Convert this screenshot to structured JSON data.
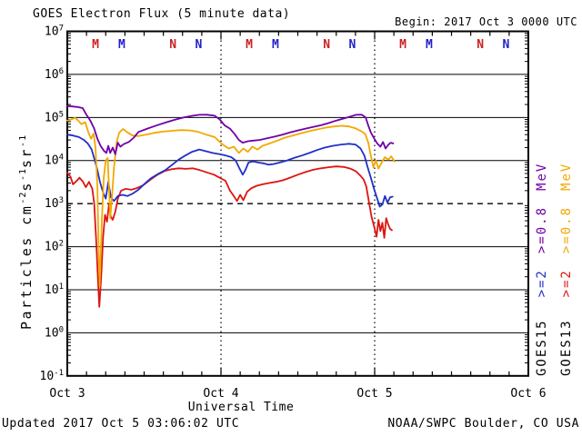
{
  "header": {
    "title": "GOES Electron Flux (5 minute data)",
    "begin": "Begin: 2017 Oct 3 0000 UTC"
  },
  "footer": {
    "updated": "Updated 2017 Oct  5 03:06:02 UTC",
    "credit": "NOAA/SWPC Boulder, CO USA"
  },
  "colors": {
    "goes15_gt08": "#7000a8",
    "goes15_gt2": "#2030c8",
    "goes13_gt08": "#f2a800",
    "goes13_gt2": "#dd1510",
    "marker_red": "#cc2020",
    "marker_blue": "#2020cc",
    "frame": "#000000",
    "background": "#ffffff"
  },
  "axes": {
    "x_label": "Universal Time",
    "x_day_labels": [
      "Oct 3",
      "Oct 4",
      "Oct 5",
      "Oct 6"
    ],
    "y_base": "10",
    "y_tick_exponents": [
      7,
      6,
      5,
      4,
      3,
      2,
      1,
      0,
      -1
    ],
    "y_label_parts": [
      {
        "text": "Particles cm"
      },
      {
        "text": "-2",
        "sup": true
      },
      {
        "text": "s"
      },
      {
        "text": "-1",
        "sup": true
      },
      {
        "text": "sr"
      },
      {
        "text": "-1",
        "sup": true
      }
    ]
  },
  "legend": {
    "col1": {
      "satellite": "GOES15",
      "e2": ">=2",
      "e08": ">=0.8",
      "mev": "MeV",
      "sat_color": "#000000",
      "e2_color": "#2030c8",
      "e08_color": "#7000a8"
    },
    "col2": {
      "satellite": "GOES13",
      "e2": ">=2",
      "e08": ">=0.8",
      "mev": "MeV",
      "sat_color": "#000000",
      "e2_color": "#dd1510",
      "e08_color": "#f2a800"
    }
  },
  "markers": [
    {
      "label": "M",
      "hour": 4.4,
      "color": "#cc2020"
    },
    {
      "label": "M",
      "hour": 8.5,
      "color": "#2020cc"
    },
    {
      "label": "N",
      "hour": 16.5,
      "color": "#cc2020"
    },
    {
      "label": "N",
      "hour": 20.5,
      "color": "#2020cc"
    },
    {
      "label": "M",
      "hour": 28.4,
      "color": "#cc2020"
    },
    {
      "label": "M",
      "hour": 32.5,
      "color": "#2020cc"
    },
    {
      "label": "N",
      "hour": 40.5,
      "color": "#cc2020"
    },
    {
      "label": "N",
      "hour": 44.5,
      "color": "#2020cc"
    },
    {
      "label": "M",
      "hour": 52.4,
      "color": "#cc2020"
    },
    {
      "label": "M",
      "hour": 56.5,
      "color": "#2020cc"
    },
    {
      "label": "N",
      "hour": 64.5,
      "color": "#cc2020"
    },
    {
      "label": "N",
      "hour": 68.5,
      "color": "#2020cc"
    }
  ],
  "chart_data": {
    "type": "line",
    "title": "GOES Electron Flux (5 minute data)",
    "xlabel": "Universal Time",
    "ylabel": "Particles cm-2 s-1 sr-1",
    "x_unit": "hours since 2017 Oct 3 0000 UTC",
    "x_range_hours": [
      0,
      72
    ],
    "y_range": [
      0.1,
      10000000
    ],
    "y_scale": "log",
    "grid": "solid horizontal line each decade, dashed threshold at 1e3, dotted vertical day boundaries",
    "threshold_line_value": 1000,
    "day_gridlines_hours": [
      24,
      48
    ],
    "series": [
      {
        "name": "GOES13 >=2 MeV",
        "color": "#dd1510",
        "points": [
          [
            0,
            5200
          ],
          [
            0.5,
            4200
          ],
          [
            0.9,
            2800
          ],
          [
            1.4,
            3300
          ],
          [
            1.9,
            4000
          ],
          [
            2.4,
            3300
          ],
          [
            2.9,
            2400
          ],
          [
            3.4,
            3200
          ],
          [
            3.9,
            2200
          ],
          [
            4.2,
            1000
          ],
          [
            4.5,
            150
          ],
          [
            4.8,
            16
          ],
          [
            5.0,
            4
          ],
          [
            5.3,
            20
          ],
          [
            5.6,
            170
          ],
          [
            5.9,
            550
          ],
          [
            6.2,
            380
          ],
          [
            6.5,
            950
          ],
          [
            6.8,
            500
          ],
          [
            7.1,
            420
          ],
          [
            7.5,
            650
          ],
          [
            7.9,
            1300
          ],
          [
            8.4,
            2000
          ],
          [
            9.1,
            2200
          ],
          [
            10,
            2100
          ],
          [
            10.9,
            2300
          ],
          [
            11.9,
            2700
          ],
          [
            13,
            3600
          ],
          [
            14.1,
            4700
          ],
          [
            15.2,
            5700
          ],
          [
            16.3,
            6300
          ],
          [
            17.4,
            6600
          ],
          [
            18.5,
            6400
          ],
          [
            19.6,
            6600
          ],
          [
            20.7,
            6000
          ],
          [
            21.8,
            5300
          ],
          [
            22.9,
            4700
          ],
          [
            23.9,
            3900
          ],
          [
            24.7,
            3400
          ],
          [
            25.4,
            2000
          ],
          [
            26,
            1500
          ],
          [
            26.5,
            1150
          ],
          [
            27,
            1600
          ],
          [
            27.5,
            1200
          ],
          [
            28.1,
            1900
          ],
          [
            28.8,
            2300
          ],
          [
            29.6,
            2600
          ],
          [
            30.5,
            2800
          ],
          [
            31.5,
            3000
          ],
          [
            32.6,
            3200
          ],
          [
            33.7,
            3500
          ],
          [
            34.8,
            4000
          ],
          [
            36,
            4700
          ],
          [
            37.2,
            5400
          ],
          [
            38.4,
            6100
          ],
          [
            39.6,
            6600
          ],
          [
            40.8,
            7000
          ],
          [
            42,
            7300
          ],
          [
            43.2,
            7100
          ],
          [
            44.2,
            6500
          ],
          [
            45.1,
            5600
          ],
          [
            45.8,
            4400
          ],
          [
            46.3,
            3600
          ],
          [
            46.7,
            2500
          ],
          [
            47.1,
            1100
          ],
          [
            47.5,
            500
          ],
          [
            47.9,
            300
          ],
          [
            48.3,
            170
          ],
          [
            48.6,
            420
          ],
          [
            48.9,
            230
          ],
          [
            49.2,
            360
          ],
          [
            49.5,
            160
          ],
          [
            49.8,
            460
          ],
          [
            50.1,
            330
          ],
          [
            50.4,
            260
          ],
          [
            50.7,
            240
          ]
        ]
      },
      {
        "name": "GOES15 >=2 MeV",
        "color": "#2030c8",
        "points": [
          [
            0,
            40000
          ],
          [
            0.9,
            38000
          ],
          [
            1.8,
            35000
          ],
          [
            2.6,
            30000
          ],
          [
            3.2,
            25000
          ],
          [
            3.8,
            18000
          ],
          [
            4.3,
            10000
          ],
          [
            4.7,
            6000
          ],
          [
            5.1,
            3200
          ],
          [
            5.6,
            1800
          ],
          [
            6,
            1300
          ],
          [
            6.4,
            3200
          ],
          [
            6.8,
            1400
          ],
          [
            7.3,
            1150
          ],
          [
            7.9,
            1500
          ],
          [
            8.6,
            1600
          ],
          [
            9.4,
            1500
          ],
          [
            10.2,
            1700
          ],
          [
            11.1,
            2100
          ],
          [
            12.1,
            2900
          ],
          [
            13.1,
            3900
          ],
          [
            14.2,
            4900
          ],
          [
            15.3,
            6000
          ],
          [
            16.4,
            8000
          ],
          [
            17.4,
            10500
          ],
          [
            18.4,
            13000
          ],
          [
            19.5,
            16000
          ],
          [
            20.6,
            18000
          ],
          [
            21.6,
            16500
          ],
          [
            22.7,
            15000
          ],
          [
            23.8,
            14000
          ],
          [
            24.8,
            13000
          ],
          [
            25.6,
            12000
          ],
          [
            26.3,
            10000
          ],
          [
            26.9,
            6500
          ],
          [
            27.4,
            4700
          ],
          [
            27.8,
            6000
          ],
          [
            28.3,
            9000
          ],
          [
            29,
            9500
          ],
          [
            29.8,
            9000
          ],
          [
            30.6,
            8600
          ],
          [
            31.4,
            8000
          ],
          [
            32.2,
            8300
          ],
          [
            33.2,
            9000
          ],
          [
            34.3,
            10000
          ],
          [
            35.4,
            11500
          ],
          [
            36.6,
            13000
          ],
          [
            37.8,
            15000
          ],
          [
            39,
            17500
          ],
          [
            40.2,
            20000
          ],
          [
            41.5,
            22000
          ],
          [
            42.8,
            23500
          ],
          [
            44,
            24500
          ],
          [
            45,
            23500
          ],
          [
            45.8,
            19000
          ],
          [
            46.4,
            13000
          ],
          [
            46.9,
            7000
          ],
          [
            47.4,
            4000
          ],
          [
            47.9,
            2200
          ],
          [
            48.4,
            1300
          ],
          [
            48.8,
            850
          ],
          [
            49.2,
            950
          ],
          [
            49.6,
            1500
          ],
          [
            50,
            1050
          ],
          [
            50.4,
            1400
          ],
          [
            50.8,
            1450
          ]
        ]
      },
      {
        "name": "GOES13 >=0.8 MeV",
        "color": "#f2a800",
        "points": [
          [
            0,
            85000
          ],
          [
            0.6,
            90000
          ],
          [
            1.2,
            98000
          ],
          [
            1.7,
            85000
          ],
          [
            2.2,
            70000
          ],
          [
            2.8,
            78000
          ],
          [
            3.3,
            45000
          ],
          [
            3.7,
            32000
          ],
          [
            4.1,
            42000
          ],
          [
            4.4,
            20000
          ],
          [
            4.7,
            2500
          ],
          [
            4.9,
            80
          ],
          [
            5.05,
            12
          ],
          [
            5.2,
            50
          ],
          [
            5.4,
            400
          ],
          [
            5.7,
            4000
          ],
          [
            6,
            10000
          ],
          [
            6.3,
            11500
          ],
          [
            6.5,
            2500
          ],
          [
            6.7,
            450
          ],
          [
            7,
            1600
          ],
          [
            7.3,
            7000
          ],
          [
            7.7,
            26000
          ],
          [
            8.1,
            44000
          ],
          [
            8.7,
            54000
          ],
          [
            9.4,
            45000
          ],
          [
            10.2,
            38000
          ],
          [
            11.1,
            37000
          ],
          [
            12.3,
            40000
          ],
          [
            13.6,
            44000
          ],
          [
            15,
            47000
          ],
          [
            16.4,
            49000
          ],
          [
            17.8,
            51000
          ],
          [
            19.2,
            50000
          ],
          [
            20.5,
            46000
          ],
          [
            21.7,
            40000
          ],
          [
            23,
            35000
          ],
          [
            24.2,
            24000
          ],
          [
            25.2,
            19000
          ],
          [
            26,
            21000
          ],
          [
            26.8,
            15000
          ],
          [
            27.5,
            19000
          ],
          [
            28.2,
            16000
          ],
          [
            28.9,
            21000
          ],
          [
            29.7,
            18000
          ],
          [
            30.5,
            22000
          ],
          [
            31.6,
            25000
          ],
          [
            32.8,
            29000
          ],
          [
            34,
            34000
          ],
          [
            35.2,
            38000
          ],
          [
            36.5,
            43000
          ],
          [
            37.8,
            48000
          ],
          [
            39.1,
            53000
          ],
          [
            40.4,
            58000
          ],
          [
            41.7,
            62000
          ],
          [
            42.9,
            64000
          ],
          [
            44,
            62000
          ],
          [
            45,
            56000
          ],
          [
            45.9,
            48000
          ],
          [
            46.5,
            42000
          ],
          [
            47,
            26000
          ],
          [
            47.4,
            13000
          ],
          [
            47.8,
            7000
          ],
          [
            48.2,
            10000
          ],
          [
            48.6,
            6500
          ],
          [
            49.1,
            9000
          ],
          [
            49.6,
            12000
          ],
          [
            50.1,
            10500
          ],
          [
            50.6,
            12500
          ],
          [
            51.1,
            9500
          ]
        ]
      },
      {
        "name": "GOES15 >=0.8 MeV",
        "color": "#7000a8",
        "points": [
          [
            0,
            185000
          ],
          [
            0.8,
            180000
          ],
          [
            1.6,
            175000
          ],
          [
            2.4,
            165000
          ],
          [
            3,
            115000
          ],
          [
            3.6,
            85000
          ],
          [
            4.2,
            55000
          ],
          [
            4.7,
            32000
          ],
          [
            5.2,
            22000
          ],
          [
            5.7,
            17000
          ],
          [
            6.1,
            15000
          ],
          [
            6.4,
            22000
          ],
          [
            6.7,
            15000
          ],
          [
            7.1,
            20000
          ],
          [
            7.5,
            14000
          ],
          [
            7.9,
            26000
          ],
          [
            8.3,
            21000
          ],
          [
            8.8,
            24000
          ],
          [
            9.6,
            27000
          ],
          [
            10.4,
            34000
          ],
          [
            11.1,
            46000
          ],
          [
            12.5,
            55000
          ],
          [
            13.9,
            65000
          ],
          [
            15.3,
            76000
          ],
          [
            16.7,
            88000
          ],
          [
            18.2,
            100000
          ],
          [
            19.6,
            110000
          ],
          [
            20.6,
            115000
          ],
          [
            21.8,
            116000
          ],
          [
            23,
            110000
          ],
          [
            23.8,
            90000
          ],
          [
            24.6,
            65000
          ],
          [
            25.4,
            55000
          ],
          [
            26.2,
            40000
          ],
          [
            26.8,
            30000
          ],
          [
            27.4,
            26000
          ],
          [
            28.2,
            28000
          ],
          [
            29,
            29000
          ],
          [
            30,
            30000
          ],
          [
            31.2,
            33000
          ],
          [
            32.4,
            36000
          ],
          [
            33.6,
            40000
          ],
          [
            34.8,
            45000
          ],
          [
            36,
            50000
          ],
          [
            37.2,
            55000
          ],
          [
            38.4,
            60000
          ],
          [
            39.6,
            66000
          ],
          [
            40.8,
            74000
          ],
          [
            42,
            85000
          ],
          [
            43.2,
            95000
          ],
          [
            44.2,
            105000
          ],
          [
            45.1,
            115000
          ],
          [
            46,
            116000
          ],
          [
            46.6,
            100000
          ],
          [
            47,
            65000
          ],
          [
            47.4,
            45000
          ],
          [
            47.9,
            33000
          ],
          [
            48.4,
            25000
          ],
          [
            48.9,
            21000
          ],
          [
            49.3,
            27000
          ],
          [
            49.7,
            19000
          ],
          [
            50.1,
            23000
          ],
          [
            50.5,
            26000
          ],
          [
            50.9,
            25000
          ]
        ]
      }
    ]
  }
}
